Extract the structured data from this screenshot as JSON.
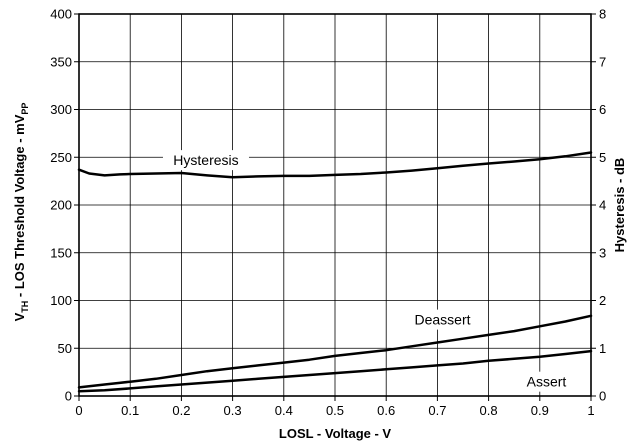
{
  "chart_data": {
    "type": "line",
    "xlabel": "LOSL - Voltage - V",
    "ylabel": "V_TH - LOS Threshold Voltage - mV_PP",
    "ylabel_parts": {
      "v": "V",
      "th": "TH",
      "mid": " - LOS Threshold Voltage - mV",
      "pp": "PP"
    },
    "y2label": "Hysteresis - dB",
    "xlim": [
      0,
      1
    ],
    "ylim": [
      0,
      400
    ],
    "y2lim": [
      0,
      8
    ],
    "x_ticks": [
      "0",
      "0.1",
      "0.2",
      "0.3",
      "0.4",
      "0.5",
      "0.6",
      "0.7",
      "0.8",
      "0.9",
      "1"
    ],
    "y_ticks": [
      "0",
      "50",
      "100",
      "150",
      "200",
      "250",
      "300",
      "350",
      "400"
    ],
    "y2_ticks": [
      "0",
      "1",
      "2",
      "3",
      "4",
      "5",
      "6",
      "7",
      "8"
    ],
    "grid": true,
    "series": [
      {
        "name": "Hysteresis",
        "axis": "right",
        "x": [
          0,
          0.02,
          0.05,
          0.08,
          0.1,
          0.15,
          0.2,
          0.25,
          0.3,
          0.35,
          0.4,
          0.45,
          0.5,
          0.55,
          0.6,
          0.65,
          0.7,
          0.75,
          0.8,
          0.85,
          0.9,
          0.95,
          1.0
        ],
        "values": [
          4.74,
          4.66,
          4.62,
          4.64,
          4.65,
          4.66,
          4.67,
          4.62,
          4.58,
          4.6,
          4.61,
          4.61,
          4.63,
          4.65,
          4.68,
          4.72,
          4.77,
          4.82,
          4.87,
          4.91,
          4.96,
          5.02,
          5.1
        ]
      },
      {
        "name": "Deassert",
        "axis": "left",
        "x": [
          0,
          0.05,
          0.1,
          0.15,
          0.2,
          0.25,
          0.3,
          0.35,
          0.4,
          0.45,
          0.5,
          0.55,
          0.6,
          0.65,
          0.7,
          0.75,
          0.8,
          0.85,
          0.9,
          0.95,
          1.0
        ],
        "values": [
          9,
          12,
          15,
          18,
          22,
          26,
          29,
          32,
          35,
          38,
          42,
          45,
          48,
          52,
          56,
          60,
          64,
          68,
          73,
          78,
          84
        ]
      },
      {
        "name": "Assert",
        "axis": "left",
        "x": [
          0,
          0.05,
          0.1,
          0.15,
          0.2,
          0.25,
          0.3,
          0.35,
          0.4,
          0.45,
          0.5,
          0.55,
          0.6,
          0.65,
          0.7,
          0.75,
          0.8,
          0.85,
          0.9,
          0.95,
          1.0
        ],
        "values": [
          5,
          6,
          8,
          10,
          12,
          14,
          16,
          18,
          20,
          22,
          24,
          26,
          28,
          30,
          32,
          34,
          37,
          39,
          41,
          44,
          47
        ]
      }
    ],
    "annotations": [
      {
        "text": "Hysteresis",
        "series": "Hysteresis",
        "at_x": 0.248,
        "at_y": 4.94
      },
      {
        "text": "Deassert",
        "series": "Deassert",
        "at_x": 0.71,
        "at_y": 80
      },
      {
        "text": "Assert",
        "series": "Assert",
        "at_x": 0.913,
        "at_y": 15
      }
    ]
  }
}
